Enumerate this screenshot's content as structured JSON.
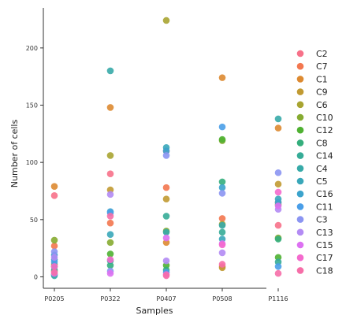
{
  "chart_data": {
    "type": "scatter",
    "title": "",
    "xlabel": "Samples",
    "ylabel": "Number of cells",
    "categories": [
      "P0205",
      "P0322",
      "P0407",
      "P0508",
      "P1116"
    ],
    "ylim": [
      -10,
      235
    ],
    "yticks": [
      0,
      50,
      100,
      150,
      200
    ],
    "grid": false,
    "legend_position": "right",
    "series": [
      {
        "name": "C2",
        "color": "#f77189",
        "values": [
          71,
          90,
          110,
          9,
          45
        ]
      },
      {
        "name": "C7",
        "color": "#f3774f",
        "values": [
          27,
          47,
          78,
          51,
          65
        ]
      },
      {
        "name": "C1",
        "color": "#dd8a31",
        "values": [
          79,
          148,
          30,
          174,
          130
        ]
      },
      {
        "name": "C9",
        "color": "#c19a32",
        "values": [
          11,
          76,
          68,
          8,
          81
        ]
      },
      {
        "name": "C6",
        "color": "#a8a431",
        "values": [
          5,
          106,
          224,
          46,
          63
        ]
      },
      {
        "name": "C10",
        "color": "#86ab31",
        "values": [
          32,
          30,
          40,
          119,
          34
        ]
      },
      {
        "name": "C12",
        "color": "#4fb132",
        "values": [
          9,
          20,
          10,
          120,
          17
        ]
      },
      {
        "name": "C8",
        "color": "#34ae7c",
        "values": [
          2,
          10,
          6,
          83,
          33
        ]
      },
      {
        "name": "C14",
        "color": "#36ac97",
        "values": [
          6,
          14,
          53,
          39,
          13
        ]
      },
      {
        "name": "C4",
        "color": "#37aaa8",
        "values": [
          1,
          180,
          39,
          45,
          138
        ]
      },
      {
        "name": "C5",
        "color": "#39a7b9",
        "values": [
          15,
          37,
          113,
          33,
          68
        ]
      },
      {
        "name": "C16",
        "color": "#3ba3cc",
        "values": [
          19,
          57,
          110,
          78,
          65
        ]
      },
      {
        "name": "C11",
        "color": "#4a9ee8",
        "values": [
          13,
          56,
          4,
          131,
          9
        ]
      },
      {
        "name": "C3",
        "color": "#8b95f2",
        "values": [
          22,
          5,
          106,
          73,
          91
        ]
      },
      {
        "name": "C13",
        "color": "#b38bf4",
        "values": [
          17,
          72,
          14,
          21,
          59
        ]
      },
      {
        "name": "C15",
        "color": "#dd71f2",
        "values": [
          3,
          3,
          34,
          29,
          62
        ]
      },
      {
        "name": "C17",
        "color": "#f46acd",
        "values": [
          9,
          15,
          2,
          28,
          74
        ]
      },
      {
        "name": "C18",
        "color": "#f66ea8",
        "values": [
          4,
          53,
          1,
          11,
          3
        ]
      }
    ]
  }
}
